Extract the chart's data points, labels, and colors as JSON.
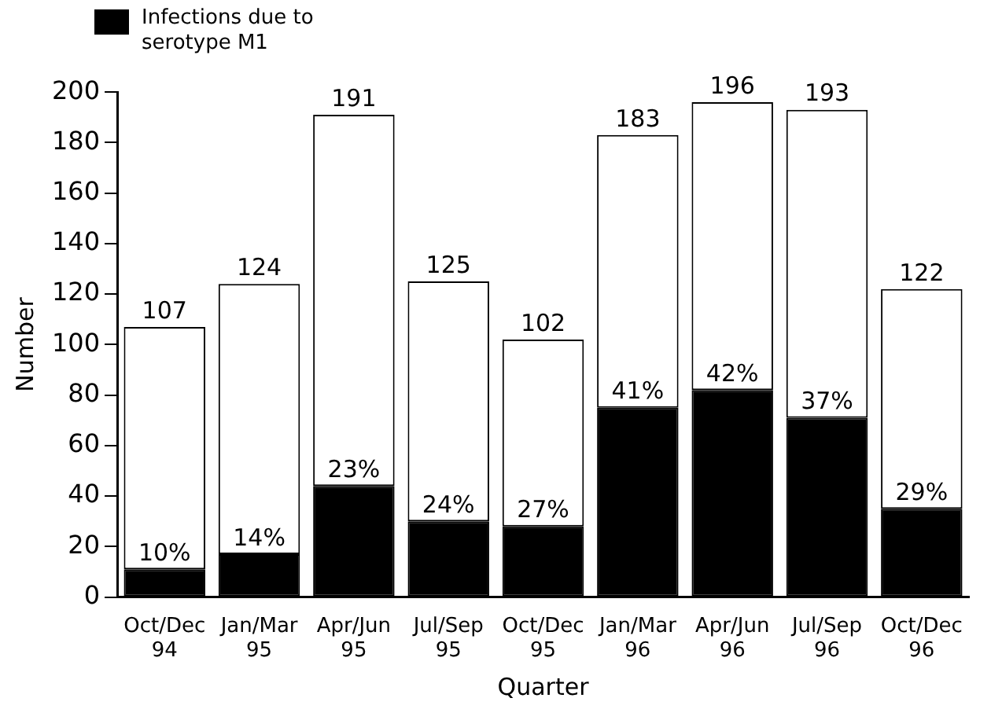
{
  "chart_data": {
    "type": "bar",
    "stacked": true,
    "xlabel": "Quarter",
    "ylabel": "Number",
    "categories": [
      "Oct/Dec 94",
      "Jan/Mar 95",
      "Apr/Jun 95",
      "Jul/Sep 95",
      "Oct/Dec 95",
      "Jan/Mar 96",
      "Apr/Jun 96",
      "Jul/Sep 96",
      "Oct/Dec 96"
    ],
    "series": [
      {
        "name": "Infections due to serotype M1",
        "color": "#000000",
        "values": [
          11,
          17,
          44,
          30,
          28,
          75,
          82,
          71,
          35
        ]
      },
      {
        "color": "#ffffff",
        "values": [
          96,
          107,
          147,
          95,
          74,
          108,
          114,
          122,
          87
        ]
      }
    ],
    "annotations": [
      {
        "text": "10%",
        "x": "Oct/Dec 94",
        "y": 11
      },
      {
        "text": "14%",
        "x": "Jan/Mar 95",
        "y": 17
      },
      {
        "text": "23%",
        "x": "Apr/Jun 95",
        "y": 44
      },
      {
        "text": "24%",
        "x": "Jul/Sep 95",
        "y": 30
      },
      {
        "text": "27%",
        "x": "Oct/Dec 95",
        "y": 28
      },
      {
        "text": "41%",
        "x": "Jan/Mar 96",
        "y": 75
      },
      {
        "text": "42%",
        "x": "Apr/Jun 96",
        "y": 82
      },
      {
        "text": "37%",
        "x": "Jul/Sep 96",
        "y": 71
      },
      {
        "text": "29%",
        "x": "Oct/Dec 96",
        "y": 35
      }
    ],
    "totals": [
      "107",
      "124",
      "191",
      "125",
      "102",
      "183",
      "196",
      "193",
      "122"
    ],
    "ylim": [
      0,
      200
    ],
    "yticks": [
      0,
      20,
      40,
      60,
      80,
      100,
      120,
      140,
      160,
      180,
      200
    ],
    "grid": false,
    "legend": "top left"
  }
}
